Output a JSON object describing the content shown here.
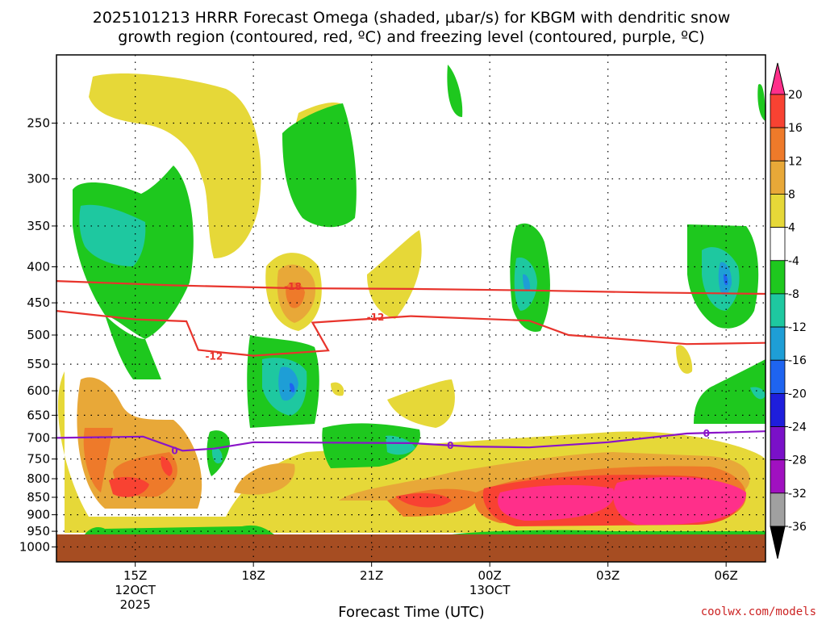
{
  "chart_data": {
    "type": "heatmap",
    "title_line1": "2025101213 HRRR Forecast Omega (shaded, µbar/s) for KBGM with dendritic snow",
    "title_line2": "growth region (contoured, red, ºC) and freezing level (contoured, purple, ºC)",
    "xlabel": "Forecast Time (UTC)",
    "ylabel": "",
    "y_ticks": [
      "250",
      "300",
      "350",
      "400",
      "450",
      "500",
      "550",
      "600",
      "650",
      "700",
      "750",
      "800",
      "850",
      "900",
      "950",
      "1000"
    ],
    "y_range_hpa": [
      200,
      1050
    ],
    "x_ticks": [
      {
        "label": "15Z",
        "sub1": "12OCT",
        "sub2": "2025",
        "hour": 2
      },
      {
        "label": "18Z",
        "sub1": "",
        "sub2": "",
        "hour": 5
      },
      {
        "label": "21Z",
        "sub1": "",
        "sub2": "",
        "hour": 8
      },
      {
        "label": "00Z",
        "sub1": "13OCT",
        "sub2": "",
        "hour": 11
      },
      {
        "label": "03Z",
        "sub1": "",
        "sub2": "",
        "hour": 14
      },
      {
        "label": "06Z",
        "sub1": "",
        "sub2": "",
        "hour": 17
      }
    ],
    "x_range_hour": [
      0,
      18
    ],
    "colorbar": {
      "labels": [
        "20",
        "16",
        "12",
        "8",
        "4",
        "-4",
        "-8",
        "-12",
        "-16",
        "-20",
        "-24",
        "-28",
        "-32",
        "-36"
      ],
      "colors": [
        "#ff2f8a",
        "#f84232",
        "#ee7a2a",
        "#e8a838",
        "#e6d838",
        "#ffffff",
        "#1ec81e",
        "#1ec8a0",
        "#1e9ed6",
        "#1e64f0",
        "#1e1edc",
        "#7a10c8",
        "#a010c0",
        "#a0a0a0",
        "#000000"
      ]
    },
    "contours": {
      "dgz_red": [
        {
          "label": "-18",
          "points": [
            [
              0,
              419
            ],
            [
              3,
              425
            ],
            [
              6,
              429
            ],
            [
              9,
              430
            ],
            [
              12,
              432
            ],
            [
              15,
              435
            ],
            [
              18,
              437
            ]
          ]
        },
        {
          "label": "-12",
          "points": [
            [
              0,
              462
            ],
            [
              2,
              475
            ],
            [
              3.3,
              478
            ],
            [
              3.6,
              525
            ],
            [
              5,
              535
            ],
            [
              6.9,
              526
            ],
            [
              6.5,
              480
            ],
            [
              9,
              470
            ],
            [
              12,
              477
            ],
            [
              13,
              500
            ],
            [
              16,
              515
            ],
            [
              18,
              513
            ]
          ]
        }
      ],
      "freezing_purple": [
        {
          "label": "0",
          "points": [
            [
              0,
              700
            ],
            [
              2.2,
              697
            ],
            [
              3.2,
              730
            ],
            [
              4,
              725
            ],
            [
              5,
              710
            ],
            [
              9,
              712
            ],
            [
              10.5,
              720
            ],
            [
              12,
              722
            ],
            [
              14,
              710
            ],
            [
              16,
              690
            ],
            [
              18,
              685
            ]
          ]
        }
      ]
    },
    "contour_labels": [
      {
        "text": "-18",
        "hour": 6.0,
        "p": 427,
        "color": "red"
      },
      {
        "text": "-12",
        "hour": 8.1,
        "p": 472,
        "color": "red"
      },
      {
        "text": "-12",
        "hour": 4.0,
        "p": 536,
        "color": "red"
      },
      {
        "text": "0",
        "hour": 3.0,
        "p": 730,
        "color": "purple"
      },
      {
        "text": "0",
        "hour": 10.0,
        "p": 718,
        "color": "purple"
      },
      {
        "text": "0",
        "hour": 16.5,
        "p": 690,
        "color": "purple"
      }
    ],
    "grid": true
  },
  "footer": {
    "credit": "coolwx.com/models"
  }
}
